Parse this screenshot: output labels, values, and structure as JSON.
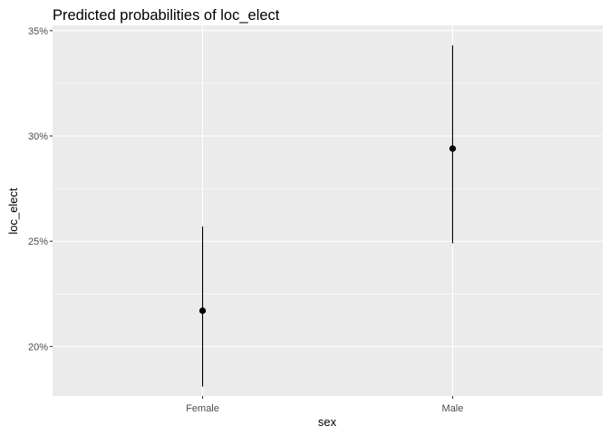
{
  "chart_data": {
    "type": "scatter",
    "title": "Predicted probabilities of loc_elect",
    "xlabel": "sex",
    "ylabel": "loc_elect",
    "categories": [
      "Female",
      "Male"
    ],
    "series": [
      {
        "values": [
          0.217,
          0.294
        ],
        "ci_low": [
          0.181,
          0.249
        ],
        "ci_high": [
          0.257,
          0.343
        ]
      }
    ],
    "ylim": [
      0.1765,
      0.3525
    ],
    "yticks": [
      0.2,
      0.25,
      0.3,
      0.35
    ],
    "ytick_labels": [
      "20%",
      "25%",
      "30%",
      "35%"
    ],
    "grid": true,
    "colors": {
      "panel_background": "#ebebeb",
      "grid": "#ffffff",
      "point": "#000000",
      "errorbar": "#000000"
    }
  }
}
